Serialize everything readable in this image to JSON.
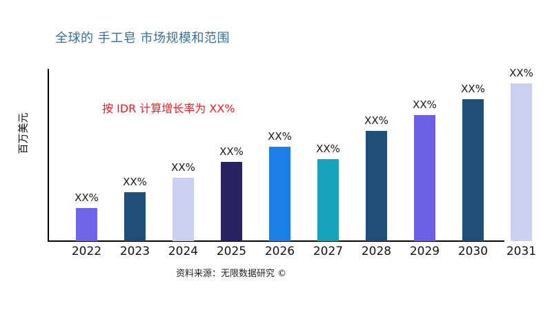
{
  "title": {
    "text": "全球的 手工皂 市场规模和范围",
    "color": "#35719E"
  },
  "annotation": {
    "text": "按 IDR 计算增长率为 XX%",
    "color": "#EE1C25"
  },
  "axes": {
    "y_label": "百万美元"
  },
  "source": {
    "text": "资料来源：无限数据研究 ©"
  },
  "colors": {
    "axis": "#000000",
    "purple": "#6F63E8",
    "navy": "#1F4E79",
    "lavender": "#CBD0F0",
    "dark_indigo": "#272260",
    "bright_blue": "#1C7FE8",
    "teal": "#16A2B8"
  },
  "chart_data": {
    "type": "bar",
    "title": "全球的 手工皂 市场规模和范围",
    "xlabel": "",
    "ylabel": "百万美元",
    "categories": [
      "2022",
      "2023",
      "2024",
      "2025",
      "2026",
      "2027",
      "2028",
      "2029",
      "2030",
      "2031"
    ],
    "values_relative_pct_of_max": [
      21,
      31,
      40,
      50,
      60,
      52,
      70,
      80,
      90,
      100
    ],
    "bar_value_labels": [
      "XX%",
      "XX%",
      "XX%",
      "XX%",
      "XX%",
      "XX%",
      "XX%",
      "XX%",
      "XX%",
      "XX%"
    ],
    "bar_colors": [
      "#6F63E8",
      "#1F4E79",
      "#CBD0F0",
      "#272260",
      "#1C7FE8",
      "#16A2B8",
      "#1F4E79",
      "#6C60E6",
      "#1F4E79",
      "#CBD0F0"
    ],
    "annotation": "按 IDR 计算增长率为 XX%",
    "grid": false,
    "legend": "none",
    "source": "资料来源：无限数据研究 ©"
  }
}
